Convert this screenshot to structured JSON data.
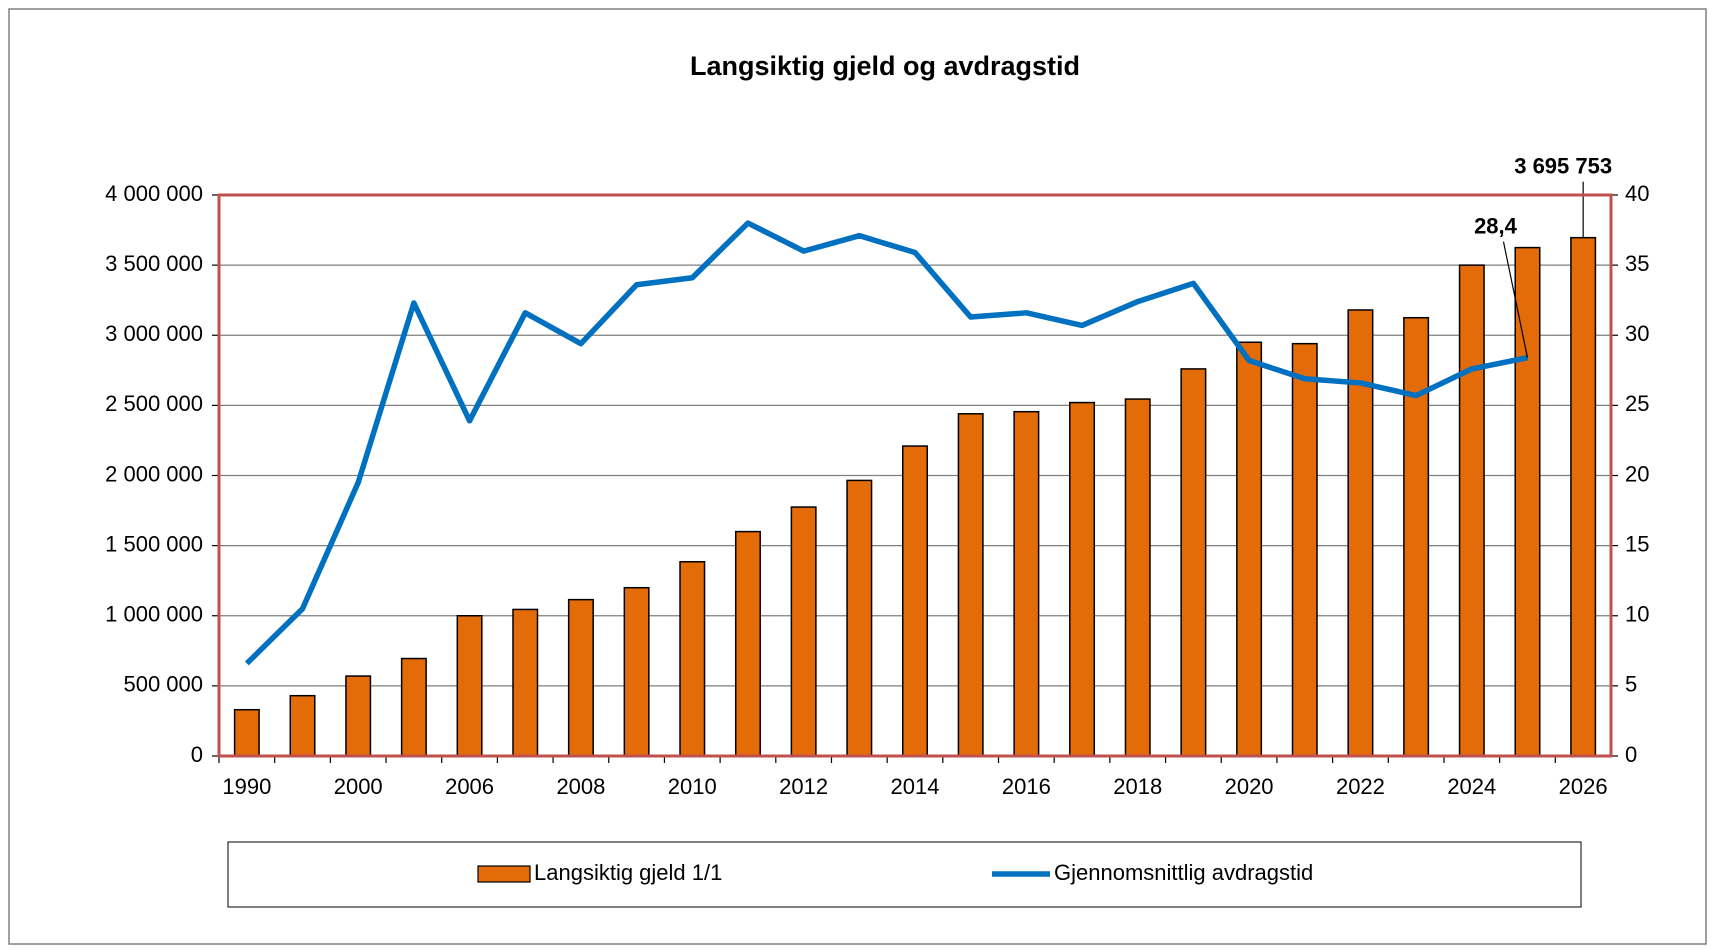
{
  "chart_data": {
    "type": "bar",
    "title": "Langsiktig gjeld og avdragstid",
    "categories": [
      "1990",
      null,
      "2000",
      null,
      "2006",
      null,
      "2008",
      null,
      "2010",
      null,
      "2012",
      null,
      "2014",
      null,
      "2016",
      null,
      "2018",
      null,
      "2020",
      null,
      "2022",
      null,
      "2024",
      null,
      "2026"
    ],
    "series": [
      {
        "name": "Langsiktig gjeld 1/1",
        "type": "bar",
        "color": "#e36c09",
        "values": [
          330000,
          430000,
          570000,
          695000,
          1000000,
          1045000,
          1115000,
          1200000,
          1385000,
          1600000,
          1775000,
          1965000,
          2210000,
          2440000,
          2455000,
          2520000,
          2545000,
          2760000,
          2950000,
          2940000,
          3180000,
          3125000,
          3500000,
          3625000,
          3695753
        ],
        "value_labels": [
          null,
          null,
          null,
          null,
          null,
          null,
          null,
          null,
          null,
          null,
          null,
          null,
          null,
          null,
          null,
          null,
          null,
          null,
          null,
          null,
          null,
          null,
          null,
          null,
          "3 695 753"
        ]
      },
      {
        "name": "Gjennomsnittlig avdragstid",
        "type": "line",
        "color": "#0070c0",
        "axis": "y2",
        "values": [
          6.6,
          10.5,
          19.5,
          32.3,
          23.9,
          31.6,
          29.4,
          33.6,
          34.1,
          38.0,
          36.0,
          37.1,
          35.9,
          31.3,
          31.6,
          30.7,
          32.4,
          33.7,
          28.2,
          26.9,
          26.6,
          25.7,
          27.6,
          28.4,
          null
        ],
        "value_labels": [
          null,
          null,
          null,
          null,
          null,
          null,
          null,
          null,
          null,
          null,
          null,
          null,
          null,
          null,
          null,
          null,
          null,
          null,
          null,
          null,
          null,
          null,
          null,
          "28,4",
          null
        ]
      }
    ],
    "ylim": [
      0,
      4000000
    ],
    "yticks": [
      {
        "value": 0,
        "label": "0"
      },
      {
        "value": 500000,
        "label": "500 000"
      },
      {
        "value": 1000000,
        "label": "1 000 000"
      },
      {
        "value": 1500000,
        "label": "1 500 000"
      },
      {
        "value": 2000000,
        "label": "2 000 000"
      },
      {
        "value": 2500000,
        "label": "2 500 000"
      },
      {
        "value": 3000000,
        "label": "3 000 000"
      },
      {
        "value": 3500000,
        "label": "3 500 000"
      },
      {
        "value": 4000000,
        "label": "4 000 000"
      }
    ],
    "y2lim": [
      0,
      40
    ],
    "y2ticks": [
      0,
      5,
      10,
      15,
      20,
      25,
      30,
      35,
      40
    ],
    "grid": true,
    "legend": "bottom"
  }
}
